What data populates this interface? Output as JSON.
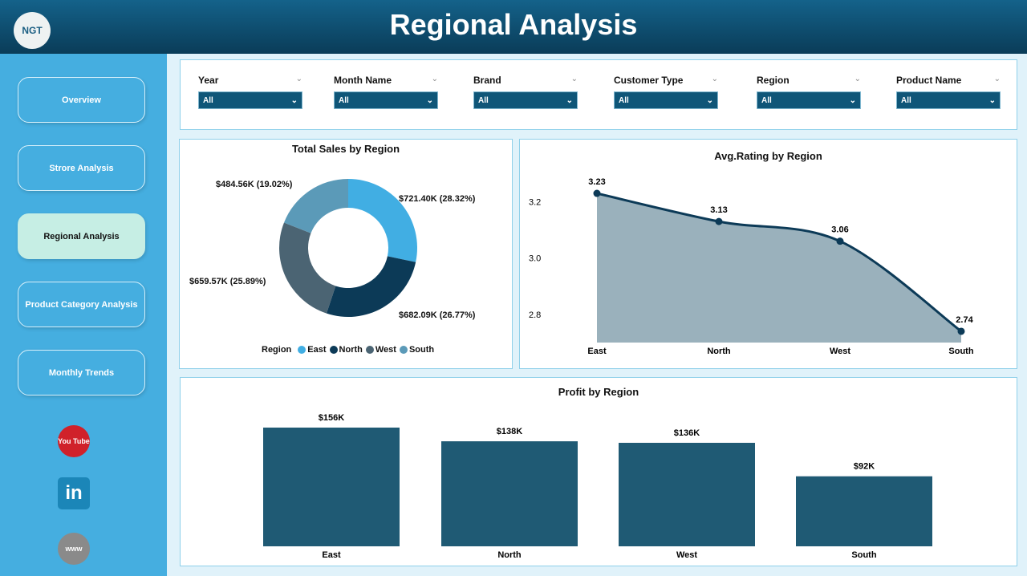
{
  "header": {
    "title": "Regional Analysis",
    "logo_text": "NGT"
  },
  "sidebar": {
    "items": [
      {
        "label": "Overview"
      },
      {
        "label": "Strore Analysis"
      },
      {
        "label": "Regional Analysis",
        "active": true
      },
      {
        "label": "Product Category Analysis"
      },
      {
        "label": "Monthly Trends"
      }
    ],
    "social": [
      {
        "icon": "youtube-icon",
        "text": "You Tube"
      },
      {
        "icon": "linkedin-icon",
        "text": "in"
      },
      {
        "icon": "globe-icon",
        "text": "www"
      }
    ]
  },
  "filters": [
    {
      "label": "Year",
      "value": "All"
    },
    {
      "label": "Month Name",
      "value": "All"
    },
    {
      "label": "Brand",
      "value": "All"
    },
    {
      "label": "Customer Type",
      "value": "All"
    },
    {
      "label": "Region",
      "value": "All"
    },
    {
      "label": "Product Name",
      "value": "All"
    }
  ],
  "chart_data": [
    {
      "type": "pie",
      "title": "Total Sales by Region",
      "legend_title": "Region",
      "legend_position": "bottom",
      "categories": [
        "East",
        "North",
        "West",
        "South"
      ],
      "values": [
        721.4,
        682.09,
        659.57,
        484.56
      ],
      "percent": [
        28.32,
        26.77,
        25.89,
        19.02
      ],
      "labels": [
        "$721.40K (28.32%)",
        "$682.09K (26.77%)",
        "$659.57K (25.89%)",
        "$484.56K (19.02%)"
      ],
      "colors": [
        "#41aee3",
        "#0c3a57",
        "#4b6473",
        "#5b9ab8"
      ],
      "donut": true
    },
    {
      "type": "area",
      "title": "Avg.Rating by Region",
      "categories": [
        "East",
        "North",
        "West",
        "South"
      ],
      "values": [
        3.23,
        3.13,
        3.06,
        2.74
      ],
      "labels": [
        "3.23",
        "3.13",
        "3.06",
        "2.74"
      ],
      "yticks": [
        "3.2",
        "3.0",
        "2.8"
      ],
      "ylim": [
        2.7,
        3.27
      ],
      "fill": "#9ab1bc",
      "line": "#0c3a57"
    },
    {
      "type": "bar",
      "title": "Profit by Region",
      "categories": [
        "East",
        "North",
        "West",
        "South"
      ],
      "values": [
        156,
        138,
        136,
        92
      ],
      "labels": [
        "$156K",
        "$138K",
        "$136K",
        "$92K"
      ],
      "color": "#1f5a74",
      "ylim": [
        0,
        160
      ]
    }
  ]
}
